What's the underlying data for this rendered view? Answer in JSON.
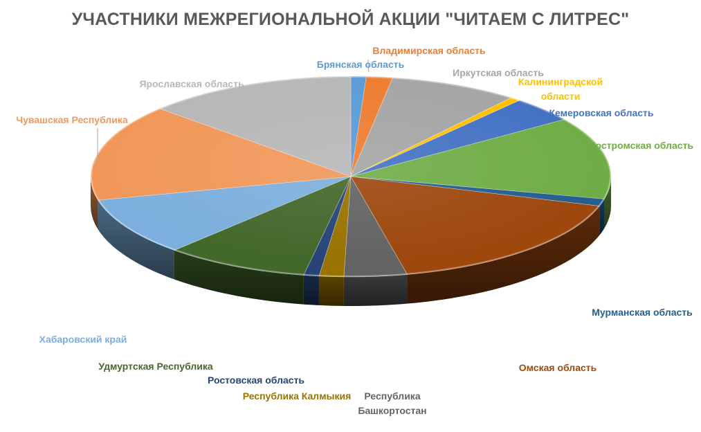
{
  "chart_data": {
    "type": "pie",
    "title": "УЧАСТНИКИ МЕЖРЕГИОНАЛЬНОЙ АКЦИИ \"ЧИТАЕМ С ЛИТРЕС\"",
    "slices": [
      {
        "label": "Брянская область",
        "value": 1.0,
        "color": "#5B9BD5"
      },
      {
        "label": "Владимирская область",
        "value": 1.7,
        "color": "#ED7D31"
      },
      {
        "label": "Иркутская область",
        "value": 8.4,
        "color": "#A5A5A5"
      },
      {
        "label": "Калининградской области",
        "value": 0.7,
        "color": "#FFC000"
      },
      {
        "label": "Кемеровская область",
        "value": 4.3,
        "color": "#4472C4"
      },
      {
        "label": "Костромская область",
        "value": 13.9,
        "color": "#70AD47"
      },
      {
        "label": "Мурманская область",
        "value": 1.2,
        "color": "#255E91"
      },
      {
        "label": "Омская область",
        "value": 17.6,
        "color": "#9E480E"
      },
      {
        "label": "Республика Башкортостан",
        "value": 4.1,
        "color": "#636363"
      },
      {
        "label": "Республика Калмыкия",
        "value": 1.6,
        "color": "#997300"
      },
      {
        "label": "Ростовская область",
        "value": 1.0,
        "color": "#264478"
      },
      {
        "label": "Удмуртская Республика",
        "value": 9.4,
        "color": "#43682B"
      },
      {
        "label": "Хабаровский край",
        "value": 9.8,
        "color": "#7CAFDD"
      },
      {
        "label": "Чувашская Республика",
        "value": 16.4,
        "color": "#F1975A"
      },
      {
        "label": "Ярославская область",
        "value": 13.8,
        "color": "#B7B7B7"
      }
    ]
  }
}
